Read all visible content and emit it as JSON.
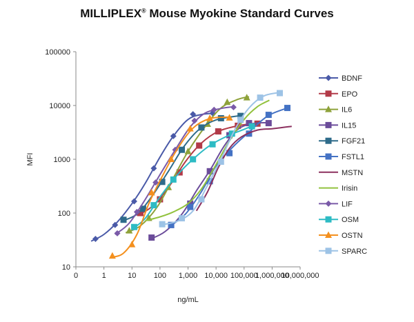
{
  "title": {
    "main": "MILLIPLEX",
    "sup": "®",
    "rest": " Mouse Myokine Standard Curves"
  },
  "chart_data": {
    "type": "line",
    "xscale": "log",
    "yscale": "log",
    "xlabel": "ng/mL",
    "ylabel": "MFI",
    "xlim": [
      0.1,
      10000000
    ],
    "ylim": [
      10,
      100000
    ],
    "x_ticks": [
      {
        "v": 0.1,
        "label": "0"
      },
      {
        "v": 1,
        "label": "1"
      },
      {
        "v": 10,
        "label": "10"
      },
      {
        "v": 100,
        "label": "100"
      },
      {
        "v": 1000,
        "label": "1,000"
      },
      {
        "v": 10000,
        "label": "10,000"
      },
      {
        "v": 100000,
        "label": "100,000"
      },
      {
        "v": 1000000,
        "label": "1,000,000"
      },
      {
        "v": 10000000,
        "label": "10,000,000"
      }
    ],
    "y_ticks": [
      {
        "v": 10,
        "label": "10"
      },
      {
        "v": 100,
        "label": "100"
      },
      {
        "v": 1000,
        "label": "1000"
      },
      {
        "v": 10000,
        "label": "10000"
      },
      {
        "v": 100000,
        "label": "100000"
      }
    ],
    "grid": false,
    "legend": "right",
    "series": [
      {
        "name": "BDNF",
        "color": "#4a5aa8",
        "marker": "diamond",
        "points": [
          [
            0.5,
            33
          ],
          [
            2.5,
            60
          ],
          [
            12,
            165
          ],
          [
            60,
            680
          ],
          [
            300,
            2700
          ],
          [
            1500,
            6900
          ],
          [
            7500,
            7200
          ]
        ],
        "curve": [
          [
            0.35,
            30
          ],
          [
            1,
            40
          ],
          [
            3,
            68
          ],
          [
            10,
            150
          ],
          [
            30,
            360
          ],
          [
            100,
            1100
          ],
          [
            300,
            2700
          ],
          [
            1000,
            5500
          ],
          [
            3000,
            6800
          ],
          [
            10000,
            7200
          ]
        ]
      },
      {
        "name": "EPO",
        "color": "#b23a48",
        "marker": "square",
        "points": [
          [
            20,
            100
          ],
          [
            100,
            180
          ],
          [
            500,
            570
          ],
          [
            2500,
            1800
          ],
          [
            12000,
            3300
          ],
          [
            60000,
            4200
          ],
          [
            300000,
            4600
          ]
        ],
        "curve": [
          [
            15,
            90
          ],
          [
            50,
            130
          ],
          [
            200,
            300
          ],
          [
            800,
            900
          ],
          [
            3000,
            2000
          ],
          [
            12000,
            3300
          ],
          [
            60000,
            4200
          ],
          [
            300000,
            4700
          ]
        ]
      },
      {
        "name": "IL6",
        "color": "#8ea23a",
        "marker": "triangle",
        "points": [
          [
            8,
            47
          ],
          [
            40,
            80
          ],
          [
            200,
            300
          ],
          [
            1000,
            1400
          ],
          [
            5000,
            4500
          ],
          [
            25000,
            11500
          ],
          [
            125000,
            14000
          ]
        ],
        "curve": [
          [
            6,
            43
          ],
          [
            20,
            58
          ],
          [
            80,
            130
          ],
          [
            300,
            450
          ],
          [
            1000,
            1400
          ],
          [
            4000,
            4000
          ],
          [
            15000,
            9000
          ],
          [
            60000,
            13000
          ],
          [
            150000,
            14500
          ]
        ]
      },
      {
        "name": "IL15",
        "color": "#6b4c9a",
        "marker": "square",
        "points": [
          [
            50,
            35
          ],
          [
            250,
            60
          ],
          [
            1200,
            150
          ],
          [
            6000,
            600
          ],
          [
            30000,
            2800
          ],
          [
            150000,
            4700
          ],
          [
            750000,
            4700
          ]
        ],
        "curve": [
          [
            40,
            32
          ],
          [
            150,
            45
          ],
          [
            600,
            95
          ],
          [
            2000,
            260
          ],
          [
            6000,
            620
          ],
          [
            20000,
            1800
          ],
          [
            60000,
            3600
          ],
          [
            200000,
            4600
          ],
          [
            800000,
            4800
          ]
        ]
      },
      {
        "name": "FGF21",
        "color": "#2e6b8a",
        "marker": "square",
        "points": [
          [
            5,
            75
          ],
          [
            25,
            120
          ],
          [
            120,
            380
          ],
          [
            600,
            1500
          ],
          [
            3000,
            3900
          ],
          [
            15000,
            5800
          ],
          [
            75000,
            6400
          ]
        ],
        "curve": [
          [
            4,
            70
          ],
          [
            15,
            95
          ],
          [
            50,
            200
          ],
          [
            200,
            600
          ],
          [
            700,
            1700
          ],
          [
            2500,
            3600
          ],
          [
            10000,
            5400
          ],
          [
            75000,
            6500
          ]
        ]
      },
      {
        "name": "FSTL1",
        "color": "#4472c4",
        "marker": "square",
        "points": [
          [
            250,
            60
          ],
          [
            1200,
            130
          ],
          [
            6000,
            390
          ],
          [
            30000,
            1300
          ],
          [
            150000,
            3000
          ],
          [
            750000,
            6700
          ],
          [
            3500000,
            9000
          ]
        ],
        "curve": [
          [
            200,
            55
          ],
          [
            800,
            95
          ],
          [
            3000,
            250
          ],
          [
            10000,
            750
          ],
          [
            40000,
            1700
          ],
          [
            150000,
            3200
          ],
          [
            700000,
            6400
          ],
          [
            3500000,
            9000
          ]
        ]
      },
      {
        "name": "MSTN",
        "color": "#8b2f5e",
        "marker": "none",
        "points": [],
        "curve": [
          [
            2000,
            110
          ],
          [
            5000,
            250
          ],
          [
            12000,
            700
          ],
          [
            30000,
            1600
          ],
          [
            80000,
            2600
          ],
          [
            300000,
            3500
          ],
          [
            1000000,
            3700
          ],
          [
            5000000,
            4100
          ]
        ]
      },
      {
        "name": "Irisin",
        "color": "#92c23e",
        "marker": "none",
        "points": [],
        "curve": [
          [
            30,
            72
          ],
          [
            100,
            85
          ],
          [
            300,
            105
          ],
          [
            1000,
            150
          ],
          [
            3000,
            280
          ],
          [
            10000,
            800
          ],
          [
            30000,
            2200
          ],
          [
            100000,
            5500
          ],
          [
            300000,
            9500
          ],
          [
            800000,
            12500
          ]
        ]
      },
      {
        "name": "LIF",
        "color": "#7a5aa8",
        "marker": "diamond",
        "points": [
          [
            3,
            42
          ],
          [
            15,
            105
          ],
          [
            70,
            370
          ],
          [
            350,
            1500
          ],
          [
            1700,
            5200
          ],
          [
            8500,
            8300
          ],
          [
            42000,
            9300
          ]
        ],
        "curve": [
          [
            2.5,
            40
          ],
          [
            8,
            65
          ],
          [
            30,
            180
          ],
          [
            100,
            520
          ],
          [
            350,
            1500
          ],
          [
            1200,
            4000
          ],
          [
            4000,
            7200
          ],
          [
            15000,
            8800
          ],
          [
            42000,
            9500
          ]
        ]
      },
      {
        "name": "OSM",
        "color": "#2dbbc4",
        "marker": "square",
        "points": [
          [
            12,
            55
          ],
          [
            60,
            140
          ],
          [
            300,
            420
          ],
          [
            1500,
            1000
          ],
          [
            7500,
            1900
          ],
          [
            37000,
            3000
          ],
          [
            190000,
            4100
          ]
        ],
        "curve": [
          [
            10,
            50
          ],
          [
            30,
            80
          ],
          [
            100,
            200
          ],
          [
            400,
            500
          ],
          [
            1500,
            1000
          ],
          [
            6000,
            1800
          ],
          [
            25000,
            2700
          ],
          [
            100000,
            3600
          ],
          [
            200000,
            4200
          ]
        ]
      },
      {
        "name": "OSTN",
        "color": "#f4901e",
        "marker": "triangle",
        "points": [
          [
            2,
            16
          ],
          [
            10,
            26
          ],
          [
            50,
            240
          ],
          [
            250,
            1000
          ],
          [
            1200,
            3700
          ],
          [
            6000,
            5800
          ],
          [
            30000,
            5900
          ]
        ],
        "curve": [
          [
            1.8,
            15
          ],
          [
            5,
            18
          ],
          [
            15,
            40
          ],
          [
            40,
            150
          ],
          [
            120,
            480
          ],
          [
            400,
            1500
          ],
          [
            1500,
            3800
          ],
          [
            6000,
            5700
          ],
          [
            30000,
            6100
          ]
        ]
      },
      {
        "name": "SPARC",
        "color": "#9dc3e6",
        "marker": "square",
        "points": [
          [
            120,
            62
          ],
          [
            600,
            80
          ],
          [
            3000,
            180
          ],
          [
            15000,
            900
          ],
          [
            75000,
            5400
          ],
          [
            375000,
            14000
          ],
          [
            1875000,
            17000
          ]
        ],
        "curve": [
          [
            100,
            60
          ],
          [
            400,
            70
          ],
          [
            1500,
            110
          ],
          [
            5000,
            330
          ],
          [
            15000,
            1000
          ],
          [
            50000,
            3800
          ],
          [
            150000,
            9000
          ],
          [
            500000,
            15000
          ],
          [
            1900000,
            17500
          ]
        ]
      }
    ]
  }
}
